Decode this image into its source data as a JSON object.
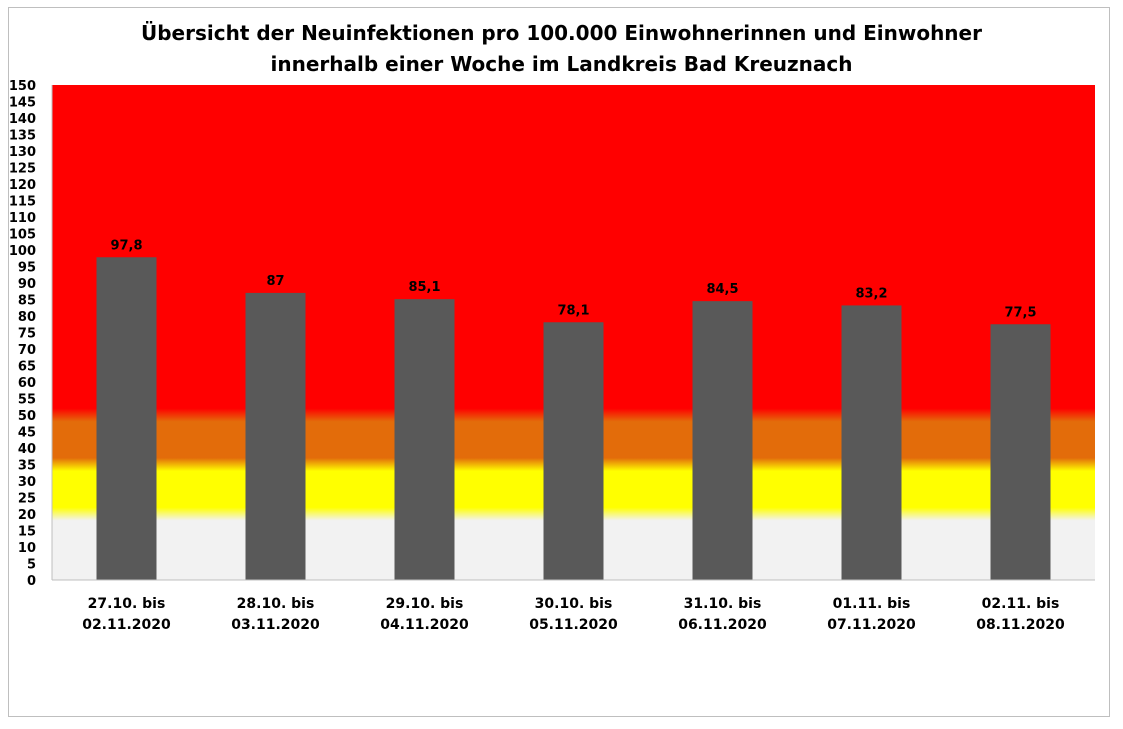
{
  "chart_data": {
    "type": "bar",
    "title_lines": [
      "Übersicht der Neuinfektionen pro 100.000 Einwohnerinnen und Einwohner",
      "innerhalb einer Woche im Landkreis Bad Kreuznach"
    ],
    "categories": [
      [
        "27.10. bis",
        "02.11.2020"
      ],
      [
        "28.10. bis",
        "03.11.2020"
      ],
      [
        "29.10. bis",
        "04.11.2020"
      ],
      [
        "30.10. bis",
        "05.11.2020"
      ],
      [
        "31.10. bis",
        "06.11.2020"
      ],
      [
        "01.11. bis",
        "07.11.2020"
      ],
      [
        "02.11. bis",
        "08.11.2020"
      ]
    ],
    "values": [
      97.8,
      87,
      85.1,
      78.1,
      84.5,
      83.2,
      77.5
    ],
    "data_labels": [
      "97,8",
      "87",
      "85,1",
      "78,1",
      "84,5",
      "83,2",
      "77,5"
    ],
    "ylim": [
      0,
      150
    ],
    "ytick_step": 5,
    "bar_color": "#595959",
    "background_bands": [
      {
        "from": 0,
        "to": 20,
        "color": "#f2f2f2"
      },
      {
        "from": 20,
        "to": 35,
        "color": "#ffff00"
      },
      {
        "from": 35,
        "to": 50,
        "color": "#e36c0a"
      },
      {
        "from": 50,
        "to": 150,
        "color": "#ff0000"
      }
    ],
    "grid": false,
    "legend": "none"
  }
}
